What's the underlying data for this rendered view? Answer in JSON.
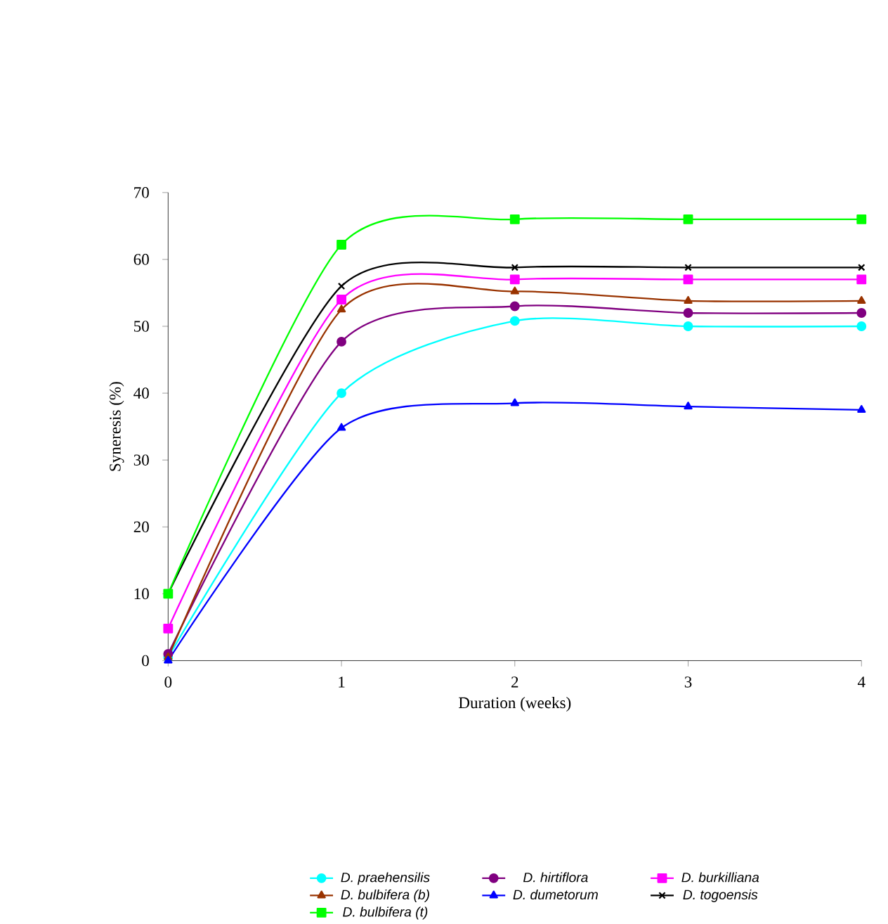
{
  "chart_data": {
    "type": "line",
    "xlabel": "Duration (weeks)",
    "ylabel": "Syneresis (%)",
    "x": [
      0,
      1,
      2,
      3,
      4
    ],
    "xlim": [
      0,
      4
    ],
    "xticks": [
      0,
      1,
      2,
      3,
      4
    ],
    "ylim": [
      0,
      70
    ],
    "yticks": [
      0,
      10,
      20,
      30,
      40,
      50,
      60,
      70
    ],
    "grid": false,
    "legend": "bottom",
    "line_style": "solid",
    "series": [
      {
        "name": "D. praehensilis",
        "color": "#00ffff",
        "marker": "circle",
        "values": [
          0.5,
          40,
          50.8,
          50,
          50
        ]
      },
      {
        "name": "D. hirtiflora",
        "color": "#800080",
        "marker": "circle",
        "values": [
          1,
          47.7,
          53,
          52,
          52
        ]
      },
      {
        "name": "D. burkilliana",
        "color": "#ff00ff",
        "marker": "square",
        "values": [
          4.8,
          54,
          57,
          57,
          57
        ]
      },
      {
        "name": "D. bulbifera (b)",
        "color": "#993300",
        "marker": "triangle",
        "values": [
          0.5,
          52.5,
          55.2,
          53.8,
          53.8
        ]
      },
      {
        "name": "D. dumetorum",
        "color": "#0000ff",
        "marker": "triangle",
        "values": [
          0,
          34.8,
          38.5,
          38,
          37.5
        ]
      },
      {
        "name": "D. togoensis",
        "color": "#000000",
        "marker": "cross",
        "values": [
          10,
          56,
          58.8,
          58.8,
          58.8
        ]
      },
      {
        "name": "D. bulbifera (t)",
        "color": "#00ff00",
        "marker": "square",
        "values": [
          10,
          62.2,
          66,
          66,
          66
        ]
      }
    ]
  }
}
